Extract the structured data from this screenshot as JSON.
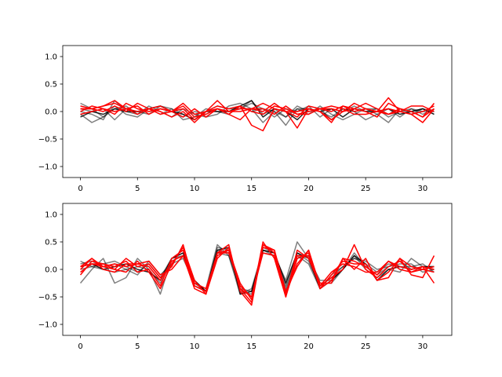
{
  "chart_data": [
    {
      "type": "line",
      "title": "",
      "xlabel": "",
      "ylabel": "",
      "xlim": [
        -1.55,
        32.55
      ],
      "ylim": [
        -1.2,
        1.2
      ],
      "xticks": [
        0,
        5,
        10,
        15,
        20,
        25,
        30
      ],
      "yticks": [
        -1.0,
        -0.5,
        0.0,
        0.5,
        1.0
      ],
      "ytick_labels": [
        "−1.0",
        "−0.5",
        "0.0",
        "0.5",
        "1.0"
      ],
      "grid": false,
      "legend": "none",
      "series": [
        {
          "color": "#000000",
          "opacity": 0.5,
          "values": [
            0.15,
            0.05,
            -0.1,
            0.05,
            0.1,
            -0.05,
            0.05,
            -0.05,
            0.05,
            -0.05,
            -0.15,
            0.0,
            0.1,
            0.05,
            0.05,
            0.2,
            -0.05,
            0.05,
            -0.1,
            0.05,
            0.05,
            0.0,
            -0.1,
            0.05,
            0.0,
            0.05,
            0.05,
            -0.05,
            0.05,
            0.0,
            0.05,
            -0.05
          ]
        },
        {
          "color": "#000000",
          "opacity": 0.5,
          "values": [
            -0.05,
            -0.2,
            -0.1,
            0.1,
            -0.05,
            -0.1,
            0.05,
            0.1,
            0.0,
            -0.1,
            0.0,
            -0.05,
            0.05,
            0.0,
            0.05,
            0.15,
            0.05,
            0.0,
            -0.25,
            0.05,
            -0.05,
            0.1,
            -0.05,
            -0.15,
            -0.05,
            0.05,
            -0.05,
            -0.2,
            0.05,
            -0.05,
            0.05,
            0.0
          ]
        },
        {
          "color": "#000000",
          "opacity": 0.5,
          "values": [
            0.0,
            -0.05,
            -0.15,
            0.2,
            0.0,
            -0.05,
            0.1,
            0.0,
            -0.1,
            0.05,
            -0.05,
            -0.1,
            -0.05,
            0.1,
            0.15,
            0.05,
            -0.2,
            0.0,
            -0.1,
            0.1,
            0.0,
            0.05,
            -0.15,
            0.05,
            0.0,
            -0.15,
            -0.05,
            0.05,
            -0.1,
            0.05,
            0.0,
            0.0
          ]
        },
        {
          "color": "#000000",
          "opacity": 0.5,
          "values": [
            0.05,
            0.0,
            0.05,
            -0.15,
            0.05,
            0.0,
            -0.05,
            0.1,
            0.05,
            -0.15,
            -0.1,
            0.05,
            0.0,
            -0.05,
            0.1,
            0.0,
            0.05,
            -0.1,
            0.05,
            0.0,
            0.1,
            -0.1,
            0.05,
            0.0,
            0.1,
            0.0,
            0.05,
            -0.1,
            0.0,
            0.05,
            -0.05,
            0.05
          ]
        },
        {
          "color": "#000000",
          "opacity": 0.85,
          "values": [
            -0.1,
            0.0,
            -0.05,
            0.05,
            0.0,
            0.0,
            0.05,
            0.1,
            0.0,
            -0.05,
            -0.15,
            0.0,
            0.0,
            0.0,
            0.1,
            0.2,
            -0.1,
            0.05,
            0.0,
            -0.15,
            0.05,
            0.0,
            0.05,
            -0.1,
            0.05,
            0.0,
            0.0,
            0.05,
            -0.05,
            0.0,
            0.05,
            -0.05
          ]
        },
        {
          "color": "#ff0000",
          "opacity": 1.0,
          "values": [
            0.05,
            0.05,
            0.1,
            0.2,
            0.05,
            -0.05,
            0.05,
            0.1,
            0.0,
            -0.1,
            0.05,
            -0.1,
            0.05,
            -0.05,
            0.1,
            -0.25,
            -0.35,
            0.05,
            0.0,
            -0.3,
            0.05,
            0.0,
            -0.2,
            0.1,
            0.0,
            0.05,
            0.0,
            0.25,
            0.0,
            -0.05,
            -0.2,
            0.05
          ]
        },
        {
          "color": "#ff0000",
          "opacity": 1.0,
          "values": [
            0.0,
            0.1,
            0.05,
            -0.05,
            0.15,
            0.05,
            0.0,
            0.05,
            0.0,
            0.1,
            -0.1,
            -0.05,
            0.05,
            0.0,
            0.0,
            0.05,
            0.0,
            0.15,
            0.0,
            -0.1,
            0.1,
            0.05,
            0.0,
            0.1,
            0.05,
            0.15,
            0.05,
            -0.05,
            0.0,
            -0.05,
            0.0,
            0.1
          ]
        },
        {
          "color": "#ff0000",
          "opacity": 1.0,
          "values": [
            0.1,
            0.05,
            0.1,
            0.15,
            0.05,
            0.1,
            -0.05,
            0.05,
            0.0,
            0.15,
            -0.05,
            0.0,
            0.1,
            0.05,
            0.1,
            0.0,
            -0.05,
            0.1,
            0.05,
            -0.05,
            0.0,
            0.05,
            0.05,
            0.0,
            0.15,
            0.05,
            0.0,
            0.05,
            0.0,
            0.1,
            0.1,
            0.0
          ]
        },
        {
          "color": "#ff0000",
          "opacity": 1.0,
          "values": [
            -0.05,
            0.0,
            0.05,
            0.0,
            0.05,
            0.0,
            0.05,
            -0.05,
            0.0,
            0.05,
            -0.15,
            0.0,
            0.05,
            -0.05,
            -0.15,
            0.05,
            0.15,
            0.05,
            0.0,
            0.0,
            0.05,
            0.0,
            -0.15,
            0.0,
            0.05,
            0.0,
            -0.1,
            0.15,
            0.05,
            0.0,
            -0.1,
            0.15
          ]
        },
        {
          "color": "#ff0000",
          "opacity": 1.0,
          "values": [
            0.05,
            0.05,
            0.0,
            0.1,
            0.0,
            0.15,
            0.05,
            0.0,
            -0.1,
            0.0,
            -0.2,
            0.0,
            0.2,
            0.0,
            0.05,
            0.05,
            0.05,
            -0.05,
            0.1,
            -0.05,
            -0.05,
            0.05,
            0.1,
            0.05,
            -0.05,
            -0.05,
            0.0,
            -0.05,
            0.05,
            0.0,
            -0.1,
            0.05
          ]
        }
      ]
    },
    {
      "type": "line",
      "title": "",
      "xlabel": "",
      "ylabel": "",
      "xlim": [
        -1.55,
        32.55
      ],
      "ylim": [
        -1.2,
        1.2
      ],
      "xticks": [
        0,
        5,
        10,
        15,
        20,
        25,
        30
      ],
      "yticks": [
        -1.0,
        -0.5,
        0.0,
        0.5,
        1.0
      ],
      "ytick_labels": [
        "−1.0",
        "−0.5",
        "0.0",
        "0.5",
        "1.0"
      ],
      "grid": false,
      "legend": "none",
      "series": [
        {
          "color": "#000000",
          "opacity": 0.5,
          "values": [
            -0.25,
            0.0,
            0.2,
            -0.25,
            -0.15,
            0.2,
            0.0,
            -0.45,
            0.2,
            0.25,
            -0.25,
            -0.35,
            0.45,
            0.25,
            -0.45,
            -0.35,
            0.35,
            0.25,
            -0.2,
            0.5,
            0.2,
            -0.2,
            -0.2,
            0.0,
            0.25,
            0.0,
            -0.15,
            0.0,
            -0.05,
            0.2,
            0.05,
            0.0
          ]
        },
        {
          "color": "#000000",
          "opacity": 0.5,
          "values": [
            0.1,
            0.15,
            0.05,
            0.1,
            0.0,
            0.05,
            0.0,
            -0.25,
            0.15,
            0.25,
            -0.3,
            -0.4,
            0.4,
            0.35,
            -0.4,
            -0.45,
            0.4,
            0.3,
            -0.3,
            0.3,
            0.15,
            -0.3,
            -0.15,
            0.05,
            0.2,
            0.15,
            0.0,
            0.05,
            0.15,
            0.0,
            0.05,
            0.05
          ]
        },
        {
          "color": "#000000",
          "opacity": 0.5,
          "values": [
            0.0,
            0.05,
            0.1,
            0.15,
            0.05,
            -0.05,
            0.1,
            -0.15,
            0.2,
            0.3,
            -0.2,
            -0.4,
            0.35,
            0.3,
            -0.3,
            -0.5,
            0.35,
            0.3,
            -0.4,
            0.2,
            0.25,
            -0.25,
            -0.25,
            0.0,
            0.3,
            0.05,
            -0.1,
            0.05,
            0.1,
            0.1,
            -0.05,
            0.0
          ]
        },
        {
          "color": "#000000",
          "opacity": 0.5,
          "values": [
            0.15,
            0.05,
            0.0,
            -0.05,
            0.0,
            -0.1,
            0.15,
            -0.1,
            0.1,
            0.2,
            -0.25,
            -0.4,
            0.3,
            0.25,
            -0.35,
            -0.4,
            0.3,
            0.25,
            -0.35,
            0.25,
            0.1,
            -0.35,
            -0.1,
            0.05,
            0.2,
            0.1,
            -0.05,
            0.1,
            0.05,
            0.05,
            0.1,
            -0.05
          ]
        },
        {
          "color": "#000000",
          "opacity": 0.85,
          "values": [
            0.05,
            0.1,
            0.0,
            0.05,
            0.1,
            0.0,
            -0.05,
            -0.2,
            0.2,
            0.3,
            -0.2,
            -0.4,
            0.35,
            0.4,
            -0.45,
            -0.4,
            0.35,
            0.3,
            -0.25,
            0.3,
            0.2,
            -0.35,
            -0.2,
            0.0,
            0.25,
            0.1,
            -0.2,
            0.0,
            0.05,
            0.0,
            0.05,
            0.05
          ]
        },
        {
          "color": "#ff0000",
          "opacity": 1.0,
          "values": [
            0.0,
            0.2,
            0.05,
            0.0,
            -0.05,
            0.15,
            -0.05,
            -0.35,
            0.1,
            0.4,
            -0.2,
            -0.45,
            0.2,
            0.4,
            -0.35,
            -0.6,
            0.45,
            0.3,
            -0.5,
            0.2,
            0.3,
            -0.35,
            -0.1,
            0.15,
            0.1,
            0.1,
            -0.2,
            -0.05,
            0.2,
            -0.1,
            -0.15,
            0.25
          ]
        },
        {
          "color": "#ff0000",
          "opacity": 1.0,
          "values": [
            -0.05,
            0.1,
            0.1,
            0.0,
            0.2,
            0.05,
            0.1,
            -0.15,
            0.05,
            0.45,
            -0.3,
            -0.4,
            0.3,
            0.45,
            -0.4,
            -0.65,
            0.45,
            0.35,
            -0.45,
            0.1,
            0.35,
            -0.3,
            -0.15,
            0.0,
            0.45,
            0.0,
            -0.15,
            0.05,
            0.15,
            -0.05,
            0.05,
            -0.25
          ]
        },
        {
          "color": "#ff0000",
          "opacity": 1.0,
          "values": [
            0.05,
            0.1,
            0.05,
            0.1,
            0.05,
            0.1,
            0.15,
            -0.1,
            0.0,
            0.25,
            -0.35,
            -0.45,
            0.3,
            0.3,
            -0.3,
            -0.5,
            0.4,
            0.35,
            -0.4,
            0.05,
            0.35,
            -0.35,
            -0.2,
            0.2,
            0.0,
            0.2,
            -0.2,
            -0.15,
            0.2,
            0.05,
            0.0,
            -0.05
          ]
        },
        {
          "color": "#ff0000",
          "opacity": 1.0,
          "values": [
            -0.1,
            0.15,
            0.1,
            0.05,
            0.15,
            -0.05,
            0.0,
            -0.3,
            0.2,
            0.35,
            -0.3,
            -0.4,
            0.3,
            0.35,
            -0.25,
            -0.55,
            0.5,
            0.2,
            -0.5,
            0.35,
            0.2,
            -0.3,
            -0.05,
            0.1,
            0.05,
            -0.05,
            -0.05,
            0.15,
            0.0,
            -0.05,
            0.0,
            0.05
          ]
        },
        {
          "color": "#ff0000",
          "opacity": 1.0,
          "values": [
            0.05,
            0.2,
            0.0,
            -0.05,
            0.1,
            0.1,
            0.05,
            -0.2,
            0.15,
            0.25,
            -0.25,
            -0.35,
            0.25,
            0.35,
            -0.35,
            -0.5,
            0.3,
            0.25,
            -0.45,
            0.25,
            0.25,
            -0.25,
            -0.25,
            0.2,
            0.15,
            0.05,
            -0.1,
            0.15,
            0.05,
            0.0,
            0.05,
            0.0
          ]
        }
      ]
    }
  ]
}
